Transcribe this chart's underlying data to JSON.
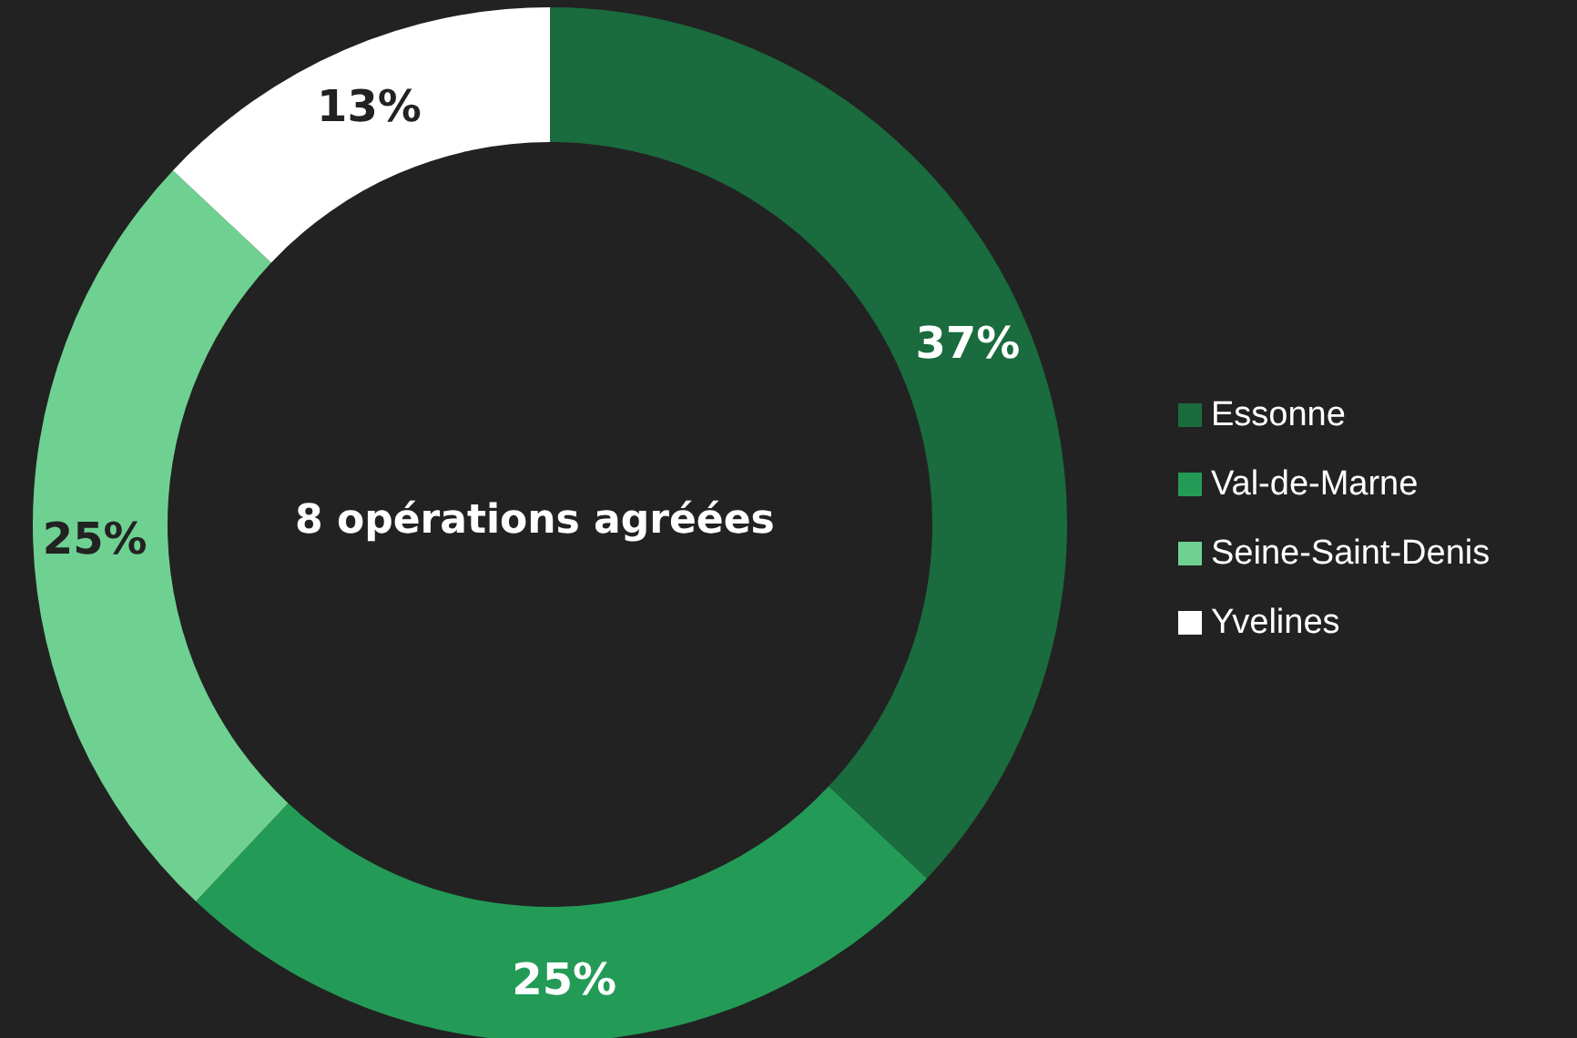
{
  "chart_data": {
    "type": "donut",
    "categories": [
      "Essonne",
      "Val-de-Marne",
      "Seine-Saint-Denis",
      "Yvelines"
    ],
    "values": [
      37,
      25,
      25,
      13
    ],
    "colors": [
      "#1a6b3d",
      "#239b57",
      "#6fd191",
      "#ffffff"
    ],
    "value_labels": [
      "37%",
      "25%",
      "25%",
      "13%"
    ],
    "legend": "right",
    "annotations": [
      "8 opérations agréées"
    ]
  }
}
